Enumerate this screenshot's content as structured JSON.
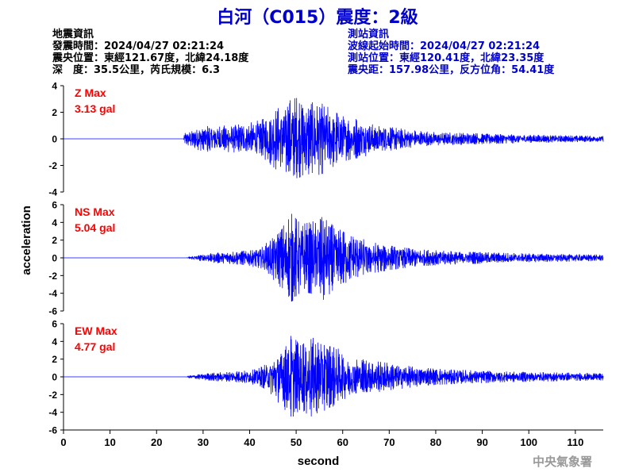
{
  "title": "白河（C015）震度：2級",
  "header_left": {
    "heading": "地震資訊",
    "origin_time": "發震時間：2024/04/27 02:21:24",
    "epicenter": "震央位置：東經121.67度，北緯24.18度",
    "depth_magnitude": "深　度：35.5公里，芮氏規模：6.3"
  },
  "header_right": {
    "heading": "測站資訊",
    "wave_start": "波線起始時間：2024/04/27 02:21:24",
    "station_position": "測站位置：東經120.41度，北緯23.35度",
    "distance_azimuth": "震央距：157.98公里，反方位角：54.41度"
  },
  "credit": "中央氣象署",
  "colors": {
    "trace": "#0000ff",
    "title": "#0000cc",
    "max_label": "#ff0000",
    "right_header": "#0000cc",
    "axis": "#000000",
    "credit": "#999999"
  },
  "chart_data": {
    "type": "line",
    "xlabel": "second",
    "ylabel": "acceleration",
    "xlim": [
      0,
      116
    ],
    "xticks": [
      0,
      10,
      20,
      30,
      40,
      50,
      60,
      70,
      80,
      90,
      100,
      110
    ],
    "signal_onset_s": 26,
    "panels": [
      {
        "component": "Z",
        "max_label": "Z Max",
        "max_value": "3.13 gal",
        "ylim": [
          -4,
          4
        ],
        "yticks": [
          -4,
          -2,
          0,
          2,
          4
        ],
        "envelope": [
          [
            0,
            0
          ],
          [
            25.8,
            0
          ],
          [
            26,
            0.45
          ],
          [
            28,
            0.75
          ],
          [
            30,
            0.95
          ],
          [
            33,
            1.0
          ],
          [
            36,
            1.0
          ],
          [
            40,
            1.2
          ],
          [
            43,
            1.5
          ],
          [
            46,
            2.4
          ],
          [
            48,
            2.8
          ],
          [
            50,
            3.1
          ],
          [
            52,
            2.6
          ],
          [
            54,
            2.8
          ],
          [
            56,
            2.6
          ],
          [
            58,
            2.1
          ],
          [
            60,
            1.7
          ],
          [
            64,
            1.4
          ],
          [
            68,
            1.0
          ],
          [
            72,
            0.8
          ],
          [
            76,
            0.6
          ],
          [
            80,
            0.5
          ],
          [
            85,
            0.45
          ],
          [
            90,
            0.4
          ],
          [
            95,
            0.35
          ],
          [
            100,
            0.3
          ],
          [
            105,
            0.28
          ],
          [
            110,
            0.25
          ],
          [
            116,
            0.22
          ]
        ]
      },
      {
        "component": "NS",
        "max_label": "NS Max",
        "max_value": "5.04 gal",
        "ylim": [
          -6,
          6
        ],
        "yticks": [
          -6,
          -4,
          -2,
          0,
          2,
          4,
          6
        ],
        "envelope": [
          [
            0,
            0
          ],
          [
            26.5,
            0
          ],
          [
            27,
            0.15
          ],
          [
            30,
            0.4
          ],
          [
            33,
            0.6
          ],
          [
            36,
            0.7
          ],
          [
            39,
            0.8
          ],
          [
            42,
            1.2
          ],
          [
            44,
            1.8
          ],
          [
            46,
            3.0
          ],
          [
            48,
            4.0
          ],
          [
            49,
            5.0
          ],
          [
            51,
            3.8
          ],
          [
            53,
            4.0
          ],
          [
            55,
            4.4
          ],
          [
            56,
            4.8
          ],
          [
            58,
            3.6
          ],
          [
            60,
            3.0
          ],
          [
            62,
            2.5
          ],
          [
            64,
            2.2
          ],
          [
            66,
            1.8
          ],
          [
            70,
            1.4
          ],
          [
            74,
            1.1
          ],
          [
            78,
            0.9
          ],
          [
            82,
            0.8
          ],
          [
            86,
            0.7
          ],
          [
            90,
            0.65
          ],
          [
            95,
            0.55
          ],
          [
            100,
            0.5
          ],
          [
            105,
            0.45
          ],
          [
            110,
            0.4
          ],
          [
            116,
            0.35
          ]
        ]
      },
      {
        "component": "EW",
        "max_label": "EW Max",
        "max_value": "4.77 gal",
        "ylim": [
          -6,
          6
        ],
        "yticks": [
          -6,
          -4,
          -2,
          0,
          2,
          4,
          6
        ],
        "envelope": [
          [
            0,
            0
          ],
          [
            26.5,
            0
          ],
          [
            27,
            0.15
          ],
          [
            30,
            0.35
          ],
          [
            33,
            0.5
          ],
          [
            36,
            0.55
          ],
          [
            39,
            0.7
          ],
          [
            42,
            1.0
          ],
          [
            44,
            1.6
          ],
          [
            46,
            2.8
          ],
          [
            48,
            4.2
          ],
          [
            49,
            4.7
          ],
          [
            51,
            3.6
          ],
          [
            53,
            4.5
          ],
          [
            55,
            4.2
          ],
          [
            57,
            3.5
          ],
          [
            59,
            3.2
          ],
          [
            61,
            2.4
          ],
          [
            64,
            2.0
          ],
          [
            68,
            1.7
          ],
          [
            72,
            1.4
          ],
          [
            76,
            1.1
          ],
          [
            80,
            0.9
          ],
          [
            85,
            0.8
          ],
          [
            90,
            0.7
          ],
          [
            95,
            0.6
          ],
          [
            100,
            0.55
          ],
          [
            105,
            0.5
          ],
          [
            110,
            0.45
          ],
          [
            116,
            0.4
          ]
        ]
      }
    ]
  }
}
